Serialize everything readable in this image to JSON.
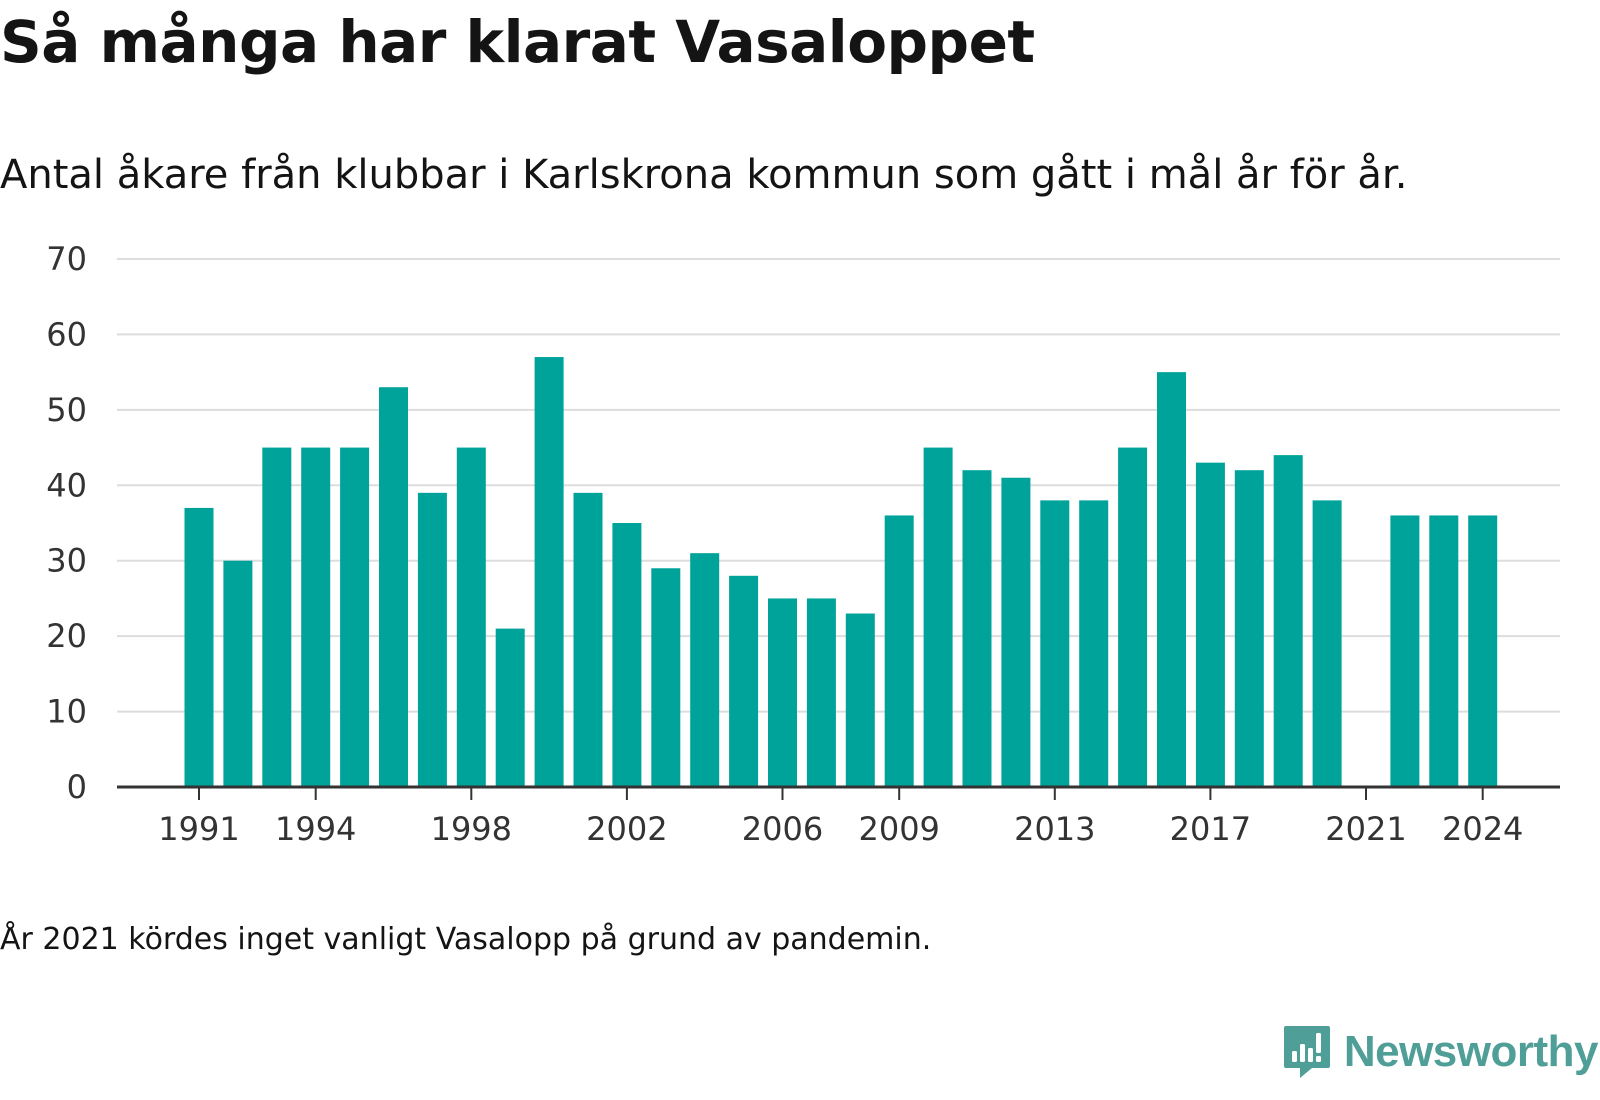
{
  "title": "Så många har klarat Vasaloppet",
  "subtitle": "Antal åkare från klubbar i Karlskrona kommun som gått i mål år för år.",
  "footnote": "År 2021 kördes inget vanligt Vasalopp på grund av pandemin.",
  "brand": {
    "name": "Newsworthy",
    "icon": "newsworthy-logo-icon",
    "color": "#4f9e97"
  },
  "colors": {
    "bar": "#00a39a",
    "grid": "#dddddd",
    "axis": "#333333"
  },
  "chart_data": {
    "type": "bar",
    "x": [
      1991,
      1992,
      1993,
      1994,
      1995,
      1996,
      1997,
      1998,
      1999,
      2000,
      2001,
      2002,
      2003,
      2004,
      2005,
      2006,
      2007,
      2008,
      2009,
      2010,
      2011,
      2012,
      2013,
      2014,
      2015,
      2016,
      2017,
      2018,
      2019,
      2020,
      2021,
      2022,
      2023,
      2024
    ],
    "values": [
      37,
      30,
      45,
      45,
      45,
      53,
      39,
      45,
      21,
      57,
      39,
      35,
      29,
      31,
      28,
      25,
      25,
      23,
      36,
      45,
      42,
      41,
      38,
      38,
      45,
      55,
      43,
      42,
      44,
      38,
      null,
      36,
      36,
      36
    ],
    "x_tick_labels": [
      "1991",
      "1994",
      "1998",
      "2002",
      "2006",
      "2009",
      "2013",
      "2017",
      "2021",
      "2024"
    ],
    "y_ticks": [
      0,
      10,
      20,
      30,
      40,
      50,
      60,
      70
    ],
    "ylim": [
      0,
      70
    ],
    "grid": true,
    "legend": false,
    "xlabel": "",
    "ylabel": ""
  }
}
